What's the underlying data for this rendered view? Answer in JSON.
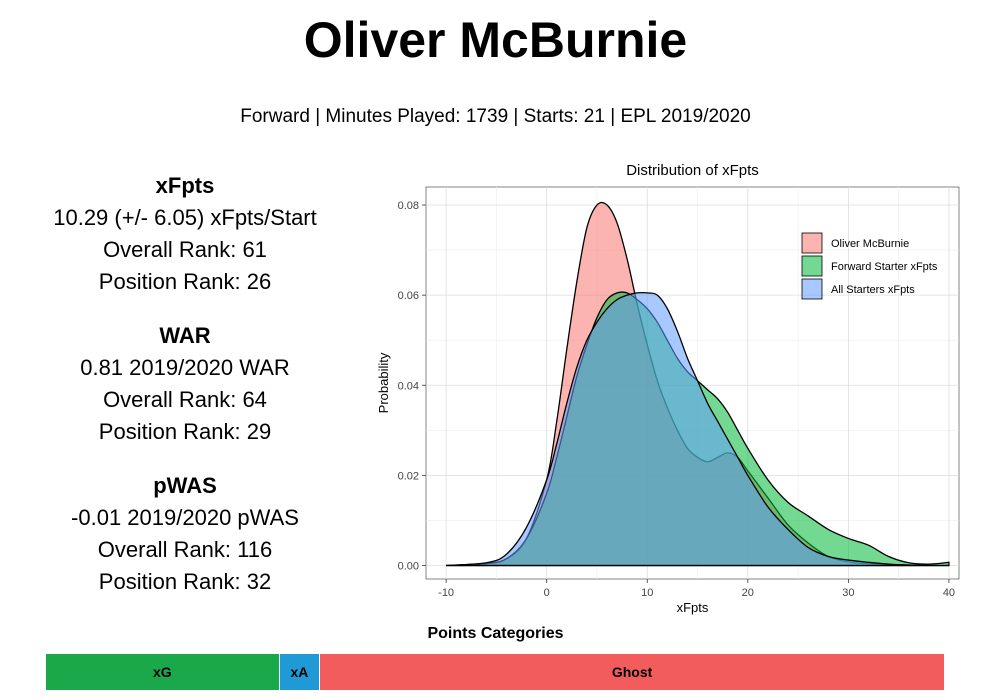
{
  "header": {
    "title": "Oliver McBurnie",
    "subtitle": "Forward | Minutes Played: 1739 | Starts: 21 | EPL 2019/2020"
  },
  "stats": {
    "xfpts": {
      "heading": "xFpts",
      "lines": [
        "10.29 (+/- 6.05) xFpts/Start",
        "Overall Rank: 61",
        "Position Rank: 26"
      ]
    },
    "war": {
      "heading": "WAR",
      "lines": [
        "0.81 2019/2020 WAR",
        "Overall Rank: 64",
        "Position Rank: 29"
      ]
    },
    "pwas": {
      "heading": "pWAS",
      "lines": [
        "-0.01 2019/2020 pWAS",
        "Overall Rank: 116",
        "Position Rank: 32"
      ]
    }
  },
  "chart_data": {
    "type": "area",
    "title": "Distribution of xFpts",
    "xlabel": "xFpts",
    "ylabel": "Probability",
    "xlim": [
      -12,
      41
    ],
    "ylim": [
      -0.003,
      0.084
    ],
    "xticks": [
      -10,
      0,
      10,
      20,
      30,
      40
    ],
    "yticks": [
      0.0,
      0.02,
      0.04,
      0.06,
      0.08
    ],
    "ytick_labels": [
      "0.00",
      "0.02",
      "0.04",
      "0.06",
      "0.08"
    ],
    "grid": true,
    "legend_position": "top-right",
    "x": [
      -10,
      -6,
      -4,
      -2,
      0,
      1,
      2,
      3,
      4,
      5,
      6,
      7,
      8,
      9,
      10,
      11,
      12,
      13,
      14,
      15,
      16,
      17,
      18,
      19,
      20,
      22,
      24,
      26,
      28,
      30,
      32,
      34,
      36,
      38,
      40
    ],
    "series": [
      {
        "name": "Oliver McBurnie",
        "color": "#F8766D",
        "values": [
          0,
          0.0005,
          0.0015,
          0.006,
          0.019,
          0.032,
          0.048,
          0.063,
          0.075,
          0.08,
          0.08,
          0.076,
          0.068,
          0.058,
          0.049,
          0.041,
          0.035,
          0.03,
          0.026,
          0.024,
          0.023,
          0.024,
          0.025,
          0.024,
          0.021,
          0.015,
          0.009,
          0.005,
          0.002,
          0.0008,
          0.0004,
          0.0002,
          0.0001,
          0,
          0
        ]
      },
      {
        "name": "Forward Starter xFpts",
        "color": "#00BA38",
        "values": [
          0,
          0.0004,
          0.0015,
          0.006,
          0.016,
          0.024,
          0.033,
          0.042,
          0.049,
          0.055,
          0.059,
          0.0605,
          0.0605,
          0.059,
          0.057,
          0.054,
          0.05,
          0.046,
          0.043,
          0.041,
          0.039,
          0.037,
          0.034,
          0.03,
          0.026,
          0.019,
          0.014,
          0.011,
          0.008,
          0.006,
          0.0045,
          0.002,
          0.0006,
          0.0003,
          0.0007
        ]
      },
      {
        "name": "All Starters xFpts",
        "color": "#619CFF",
        "values": [
          0,
          0.0006,
          0.0025,
          0.0085,
          0.019,
          0.027,
          0.036,
          0.044,
          0.05,
          0.054,
          0.057,
          0.059,
          0.06,
          0.0605,
          0.0605,
          0.06,
          0.057,
          0.052,
          0.046,
          0.041,
          0.036,
          0.032,
          0.028,
          0.024,
          0.02,
          0.013,
          0.008,
          0.004,
          0.002,
          0.0012,
          0.0007,
          0.0003,
          0.0001,
          0,
          0
        ]
      }
    ]
  },
  "categories_bar": {
    "title": "Points Categories",
    "segments": [
      {
        "label": "xG",
        "share": 0.26,
        "color": "#1aa84b"
      },
      {
        "label": "xA",
        "share": 0.045,
        "color": "#1f9ad6"
      },
      {
        "label": "Ghost",
        "share": 0.695,
        "color": "#f25c5c"
      }
    ]
  }
}
